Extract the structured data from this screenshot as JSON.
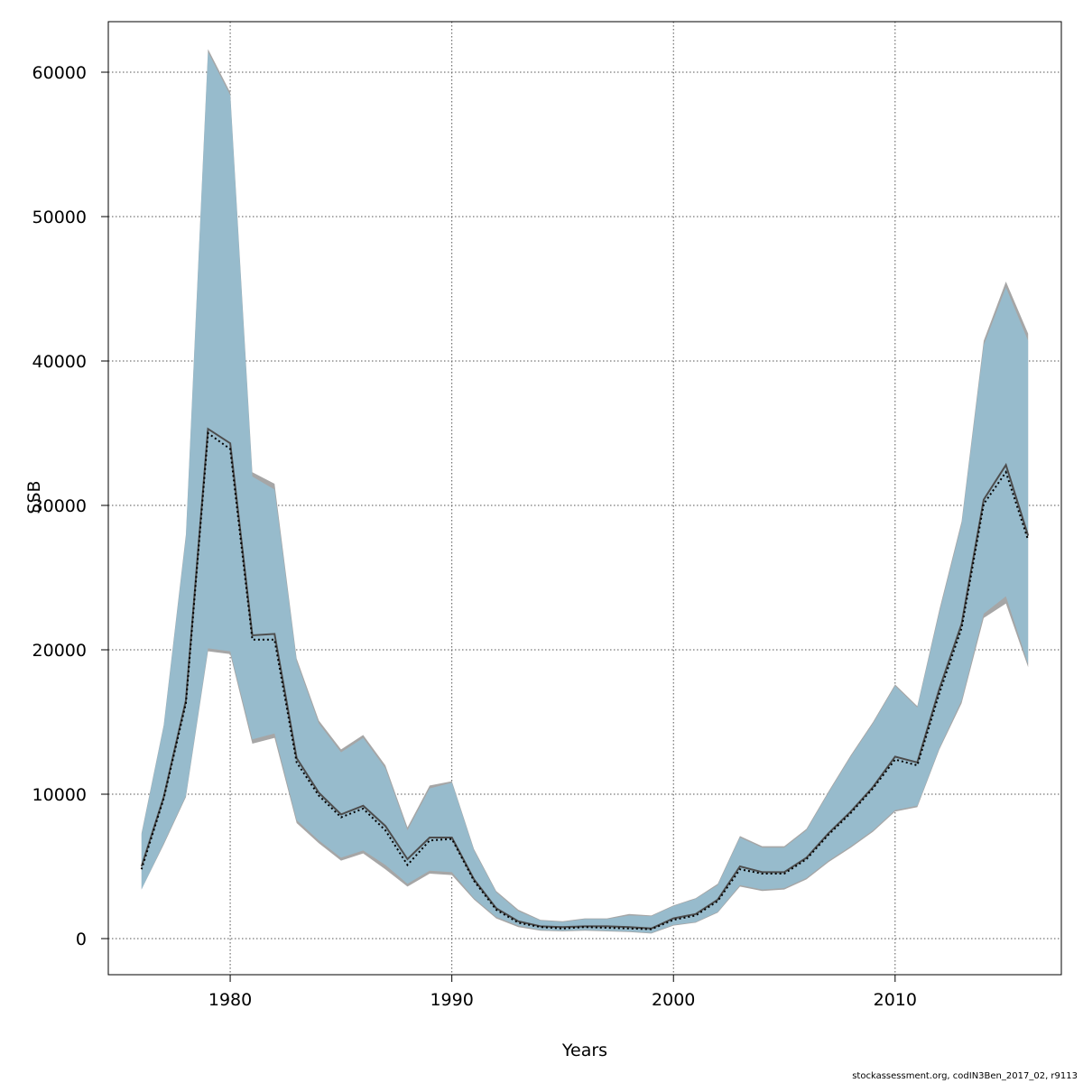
{
  "chart_data": {
    "type": "area",
    "xlabel": "Years",
    "ylabel": "SSB",
    "xlim": [
      1974.5,
      2017.5
    ],
    "ylim": [
      -2500,
      63500
    ],
    "x_ticks": [
      "1980",
      "1990",
      "2000",
      "2010"
    ],
    "x_tick_values": [
      1980,
      1990,
      2000,
      2010
    ],
    "y_ticks": [
      "0",
      "10000",
      "20000",
      "30000",
      "40000",
      "50000",
      "60000"
    ],
    "y_tick_values": [
      0,
      10000,
      20000,
      30000,
      40000,
      50000,
      60000
    ],
    "grid": true,
    "x": [
      1976,
      1977,
      1978,
      1979,
      1980,
      1981,
      1982,
      1983,
      1984,
      1985,
      1986,
      1987,
      1988,
      1989,
      1990,
      1991,
      1992,
      1993,
      1994,
      1995,
      1996,
      1997,
      1998,
      1999,
      2000,
      2001,
      2002,
      2003,
      2004,
      2005,
      2006,
      2007,
      2008,
      2009,
      2010,
      2011,
      2012,
      2013,
      2014,
      2015,
      2016
    ],
    "series": [
      {
        "style": "gray solid line with gray confidence band",
        "values": [
          5000,
          9800,
          16500,
          35300,
          34300,
          21000,
          21100,
          12500,
          10100,
          8600,
          9200,
          7800,
          5500,
          7000,
          7000,
          4100,
          2100,
          1200,
          850,
          800,
          850,
          850,
          800,
          700,
          1400,
          1700,
          2700,
          5000,
          4600,
          4600,
          5600,
          7300,
          8800,
          10500,
          12600,
          12200,
          17300,
          21800,
          30400,
          32800,
          27900
        ],
        "upper": [
          7300,
          14800,
          28000,
          61600,
          58600,
          32300,
          31500,
          19400,
          15100,
          13100,
          14100,
          12000,
          7700,
          10600,
          10900,
          6200,
          3300,
          2000,
          1300,
          1200,
          1400,
          1400,
          1700,
          1600,
          2300,
          2800,
          3800,
          7100,
          6400,
          6400,
          7600,
          10200,
          12700,
          15000,
          17600,
          16100,
          22800,
          28900,
          41400,
          45500,
          41900
        ],
        "lower": [
          3400,
          6500,
          9800,
          19900,
          19700,
          13500,
          13900,
          8000,
          6600,
          5400,
          5900,
          4800,
          3600,
          4500,
          4400,
          2700,
          1400,
          800,
          550,
          500,
          550,
          500,
          450,
          350,
          900,
          1100,
          1800,
          3600,
          3300,
          3400,
          4100,
          5300,
          6300,
          7400,
          8800,
          9100,
          13100,
          16300,
          22200,
          23200,
          18800
        ]
      },
      {
        "style": "black dotted line with light blue confidence band",
        "values": [
          4800,
          9700,
          16300,
          35000,
          33900,
          20700,
          20700,
          12200,
          9900,
          8400,
          9000,
          7500,
          5100,
          6800,
          6900,
          4000,
          2000,
          1100,
          800,
          700,
          800,
          750,
          700,
          650,
          1300,
          1600,
          2600,
          4800,
          4500,
          4500,
          5500,
          7200,
          8700,
          10400,
          12400,
          12000,
          17000,
          21500,
          30100,
          32300,
          27600
        ],
        "upper": [
          7200,
          14700,
          27800,
          61400,
          58400,
          32000,
          31100,
          19200,
          14900,
          12900,
          13900,
          11800,
          7500,
          10400,
          10800,
          6100,
          3200,
          1900,
          1250,
          1150,
          1350,
          1350,
          1600,
          1550,
          2250,
          2750,
          3700,
          7000,
          6300,
          6300,
          7500,
          10100,
          12600,
          14900,
          17500,
          16000,
          22600,
          28700,
          41100,
          45100,
          41400
        ],
        "lower": [
          3400,
          6600,
          9900,
          20100,
          19900,
          13800,
          14200,
          8200,
          6800,
          5600,
          6100,
          5100,
          3800,
          4700,
          4600,
          2800,
          1500,
          900,
          600,
          550,
          600,
          550,
          500,
          400,
          950,
          1150,
          1850,
          3700,
          3400,
          3500,
          4200,
          5400,
          6400,
          7500,
          8900,
          9200,
          13200,
          16500,
          22500,
          23700,
          19000
        ]
      }
    ]
  },
  "footer": "stockassessment.org, codIN3Ben_2017_02, r9113"
}
